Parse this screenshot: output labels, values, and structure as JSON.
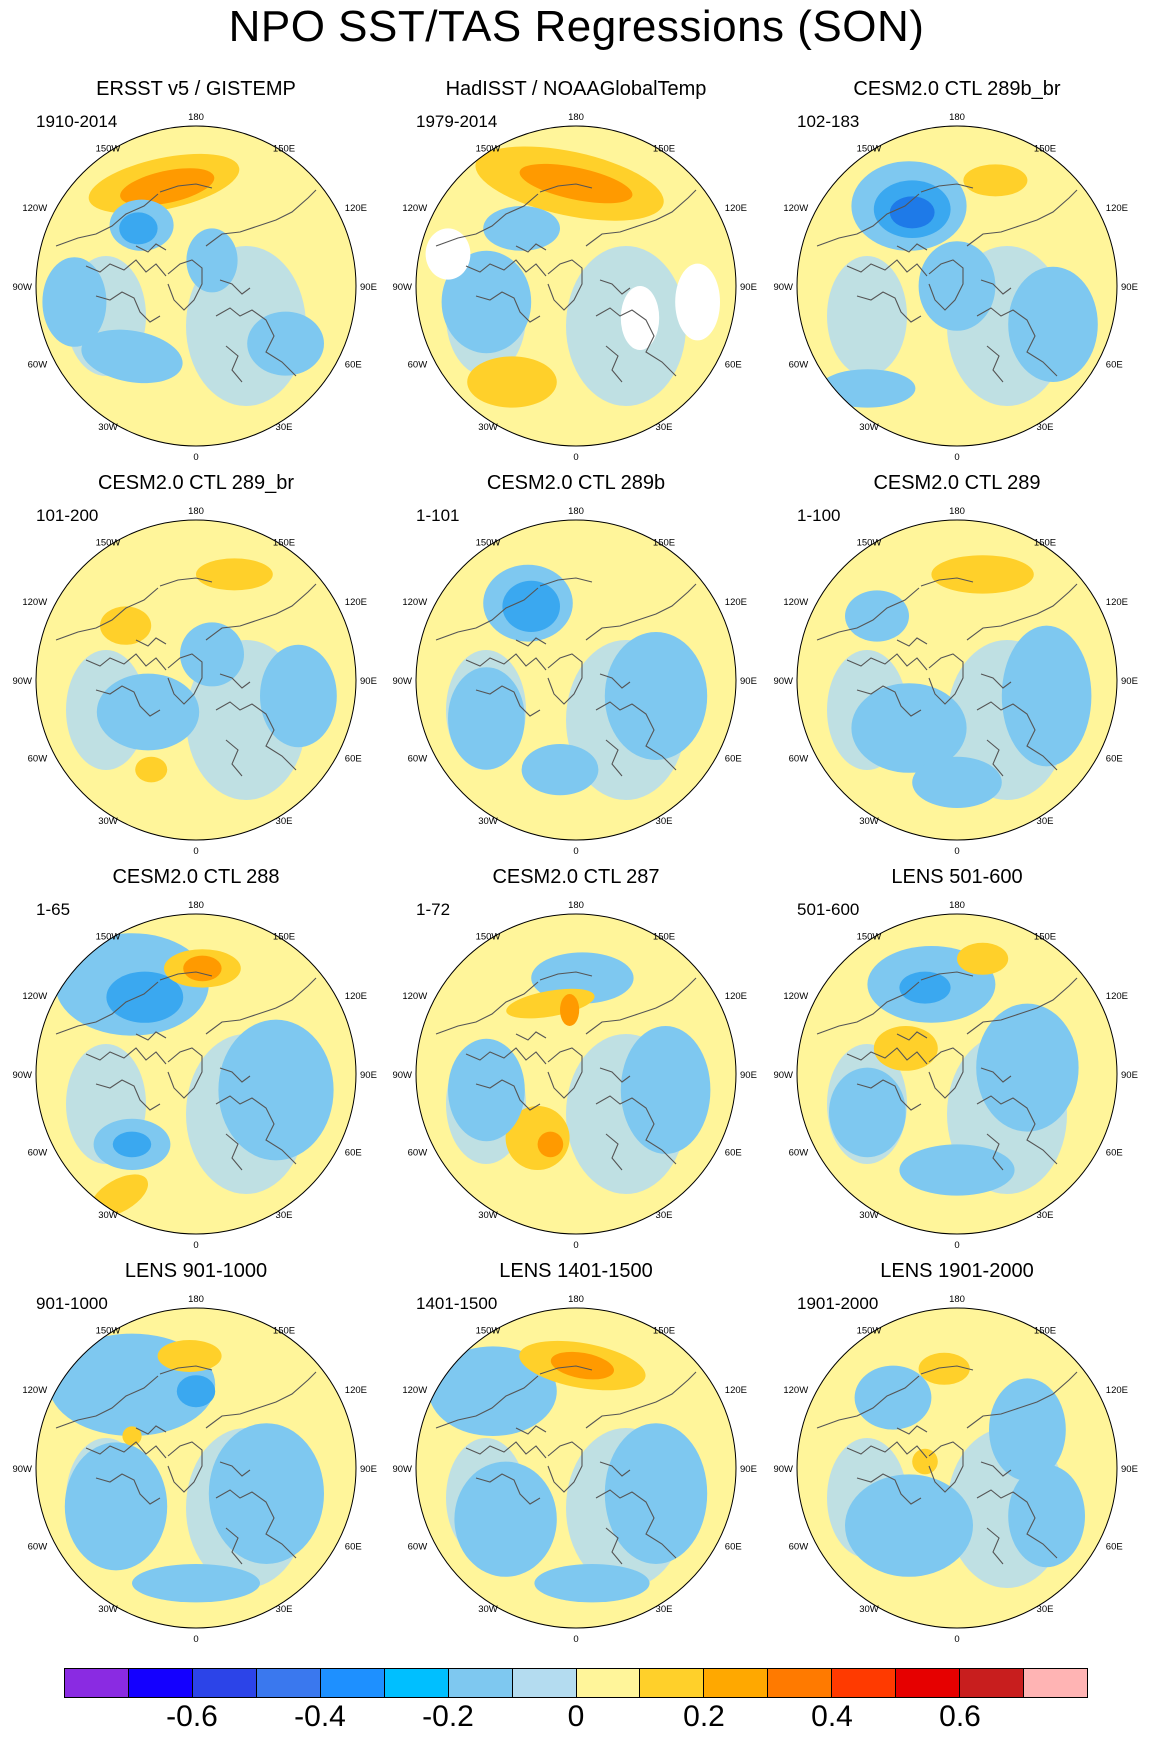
{
  "title": "NPO SST/TAS Regressions (SON)",
  "lon_labels": {
    "top": "180",
    "bottom": "0",
    "upper_left": "150W",
    "upper_right": "150E",
    "mid_upper_left": "120W",
    "mid_upper_right": "120E",
    "left": "90W",
    "right": "90E",
    "mid_lower_left": "60W",
    "mid_lower_right": "60E",
    "lower_left": "30W",
    "lower_right": "30E"
  },
  "panels": [
    {
      "title": "ERSST v5 / GISTEMP",
      "years": "1910-2014",
      "features": [
        [
          "o",
          0.4,
          0.18,
          0.24,
          0.08,
          -12
        ],
        [
          "t",
          0.41,
          0.19,
          0.15,
          0.05,
          -12
        ],
        [
          "L",
          0.33,
          0.31,
          0.1,
          0.08,
          0
        ],
        [
          "l",
          0.32,
          0.32,
          0.06,
          0.05,
          0
        ],
        [
          "L",
          0.3,
          0.72,
          0.16,
          0.08,
          10
        ],
        [
          "L",
          0.78,
          0.68,
          0.12,
          0.1,
          0
        ],
        [
          "L",
          0.55,
          0.42,
          0.08,
          0.1,
          0
        ],
        [
          "L",
          0.12,
          0.55,
          0.1,
          0.14,
          0
        ]
      ]
    },
    {
      "title": "HadISST / NOAAGlobalTemp",
      "years": "1979-2014",
      "features": [
        [
          "o",
          0.48,
          0.18,
          0.3,
          0.1,
          12
        ],
        [
          "t",
          0.5,
          0.18,
          0.18,
          0.05,
          12
        ],
        [
          "L",
          0.33,
          0.32,
          0.12,
          0.07,
          0
        ],
        [
          "L",
          0.22,
          0.55,
          0.14,
          0.16,
          0
        ],
        [
          "o",
          0.3,
          0.8,
          0.14,
          0.08,
          0
        ],
        [
          "W",
          0.1,
          0.4,
          0.07,
          0.08,
          0
        ],
        [
          "W",
          0.88,
          0.55,
          0.07,
          0.12,
          0
        ],
        [
          "W",
          0.7,
          0.6,
          0.06,
          0.1,
          0
        ]
      ]
    },
    {
      "title": "CESM2.0 CTL 289b_br",
      "years": "102-183",
      "features": [
        [
          "L",
          0.35,
          0.25,
          0.18,
          0.14,
          0
        ],
        [
          "l",
          0.36,
          0.26,
          0.12,
          0.09,
          0
        ],
        [
          "b",
          0.36,
          0.27,
          0.07,
          0.05,
          0
        ],
        [
          "o",
          0.62,
          0.17,
          0.1,
          0.05,
          0
        ],
        [
          "L",
          0.5,
          0.5,
          0.12,
          0.14,
          0
        ],
        [
          "L",
          0.22,
          0.82,
          0.15,
          0.06,
          0
        ],
        [
          "L",
          0.8,
          0.62,
          0.14,
          0.18,
          0
        ]
      ]
    },
    {
      "title": "CESM2.0 CTL 289_br",
      "years": "101-200",
      "features": [
        [
          "o",
          0.62,
          0.17,
          0.12,
          0.05,
          0
        ],
        [
          "o",
          0.28,
          0.33,
          0.08,
          0.06,
          0
        ],
        [
          "L",
          0.35,
          0.6,
          0.16,
          0.12,
          0
        ],
        [
          "L",
          0.82,
          0.55,
          0.12,
          0.16,
          0
        ],
        [
          "L",
          0.55,
          0.42,
          0.1,
          0.1,
          0
        ],
        [
          "o",
          0.36,
          0.78,
          0.05,
          0.04,
          0
        ]
      ]
    },
    {
      "title": "CESM2.0 CTL 289b",
      "years": "1-101",
      "features": [
        [
          "L",
          0.35,
          0.26,
          0.14,
          0.12,
          0
        ],
        [
          "l",
          0.36,
          0.27,
          0.09,
          0.08,
          0
        ],
        [
          "L",
          0.22,
          0.62,
          0.12,
          0.16,
          0
        ],
        [
          "L",
          0.75,
          0.55,
          0.16,
          0.2,
          0
        ],
        [
          "L",
          0.45,
          0.78,
          0.12,
          0.08,
          0
        ]
      ]
    },
    {
      "title": "CESM2.0 CTL 289",
      "years": "1-100",
      "features": [
        [
          "o",
          0.58,
          0.17,
          0.16,
          0.06,
          0
        ],
        [
          "L",
          0.25,
          0.3,
          0.1,
          0.08,
          0
        ],
        [
          "L",
          0.35,
          0.65,
          0.18,
          0.14,
          0
        ],
        [
          "L",
          0.78,
          0.55,
          0.14,
          0.22,
          0
        ],
        [
          "L",
          0.5,
          0.82,
          0.14,
          0.08,
          0
        ]
      ]
    },
    {
      "title": "CESM2.0 CTL 288",
      "years": "1-65",
      "features": [
        [
          "L",
          0.3,
          0.22,
          0.24,
          0.16,
          0
        ],
        [
          "l",
          0.34,
          0.26,
          0.12,
          0.08,
          0
        ],
        [
          "o",
          0.52,
          0.17,
          0.12,
          0.06,
          0
        ],
        [
          "t",
          0.52,
          0.17,
          0.06,
          0.04,
          0
        ],
        [
          "L",
          0.3,
          0.72,
          0.12,
          0.08,
          0
        ],
        [
          "l",
          0.3,
          0.72,
          0.06,
          0.04,
          0
        ],
        [
          "o",
          0.26,
          0.88,
          0.1,
          0.05,
          -30
        ],
        [
          "L",
          0.75,
          0.55,
          0.18,
          0.22,
          0
        ]
      ]
    },
    {
      "title": "CESM2.0 CTL 287",
      "years": "1-72",
      "features": [
        [
          "L",
          0.52,
          0.2,
          0.16,
          0.08,
          0
        ],
        [
          "o",
          0.42,
          0.28,
          0.14,
          0.04,
          -10
        ],
        [
          "o",
          0.38,
          0.7,
          0.1,
          0.1,
          0
        ],
        [
          "t",
          0.42,
          0.72,
          0.04,
          0.04,
          0
        ],
        [
          "L",
          0.22,
          0.55,
          0.12,
          0.16,
          0
        ],
        [
          "L",
          0.78,
          0.55,
          0.14,
          0.2,
          0
        ],
        [
          "t",
          0.48,
          0.3,
          0.03,
          0.05,
          0
        ]
      ]
    },
    {
      "title": "LENS 501-600",
      "years": "501-600",
      "features": [
        [
          "L",
          0.42,
          0.22,
          0.2,
          0.12,
          0
        ],
        [
          "l",
          0.4,
          0.23,
          0.08,
          0.05,
          0
        ],
        [
          "o",
          0.58,
          0.14,
          0.08,
          0.05,
          0
        ],
        [
          "o",
          0.34,
          0.42,
          0.1,
          0.07,
          0
        ],
        [
          "L",
          0.72,
          0.48,
          0.16,
          0.2,
          0
        ],
        [
          "L",
          0.22,
          0.62,
          0.12,
          0.14,
          0
        ],
        [
          "L",
          0.5,
          0.8,
          0.18,
          0.08,
          0
        ]
      ]
    },
    {
      "title": "LENS 901-1000",
      "years": "901-1000",
      "features": [
        [
          "L",
          0.3,
          0.24,
          0.26,
          0.16,
          0
        ],
        [
          "o",
          0.48,
          0.15,
          0.1,
          0.05,
          0
        ],
        [
          "l",
          0.5,
          0.26,
          0.06,
          0.05,
          0
        ],
        [
          "L",
          0.25,
          0.62,
          0.16,
          0.2,
          0
        ],
        [
          "L",
          0.72,
          0.58,
          0.18,
          0.22,
          0
        ],
        [
          "L",
          0.5,
          0.86,
          0.2,
          0.06,
          0
        ],
        [
          "o",
          0.3,
          0.4,
          0.03,
          0.03,
          0
        ]
      ]
    },
    {
      "title": "LENS 1401-1500",
      "years": "1401-1500",
      "features": [
        [
          "L",
          0.24,
          0.26,
          0.2,
          0.14,
          0
        ],
        [
          "o",
          0.52,
          0.18,
          0.2,
          0.07,
          10
        ],
        [
          "t",
          0.52,
          0.18,
          0.1,
          0.04,
          10
        ],
        [
          "L",
          0.28,
          0.66,
          0.16,
          0.18,
          0
        ],
        [
          "L",
          0.75,
          0.58,
          0.16,
          0.22,
          0
        ],
        [
          "L",
          0.55,
          0.86,
          0.18,
          0.06,
          0
        ]
      ]
    },
    {
      "title": "LENS 1901-2000",
      "years": "1901-2000",
      "features": [
        [
          "o",
          0.46,
          0.19,
          0.08,
          0.05,
          0
        ],
        [
          "L",
          0.3,
          0.28,
          0.12,
          0.1,
          0
        ],
        [
          "L",
          0.72,
          0.38,
          0.12,
          0.16,
          0
        ],
        [
          "L",
          0.35,
          0.68,
          0.2,
          0.16,
          0
        ],
        [
          "L",
          0.78,
          0.65,
          0.12,
          0.16,
          0
        ],
        [
          "o",
          0.4,
          0.48,
          0.04,
          0.04,
          0
        ]
      ]
    }
  ],
  "colorbar": {
    "colors": [
      "#8a2be2",
      "#1400ff",
      "#2c44e8",
      "#3a78ee",
      "#1e90ff",
      "#00bfff",
      "#7ec8f0",
      "#b4dcf0",
      "#fff59a",
      "#ffd02a",
      "#ffa800",
      "#ff7a00",
      "#ff3a00",
      "#e60000",
      "#c81e1e",
      "#ffb4b4"
    ],
    "labels": [
      "-0.6",
      "-0.4",
      "-0.2",
      "0",
      "0.2",
      "0.4",
      "0.6"
    ]
  },
  "palette": {
    "neutral_warm": "#fff59a",
    "neutral_cool": "#b4dcf0",
    "light_blue": "#7ec8f0",
    "mid_blue": "#3aa8f0",
    "deep_blue": "#1e7ae8",
    "light_orange": "#ffd02a",
    "deep_orange": "#ff9a00",
    "red": "#e03010",
    "missing": "#ffffff",
    "coast": "#555555",
    "outline": "#000000"
  }
}
